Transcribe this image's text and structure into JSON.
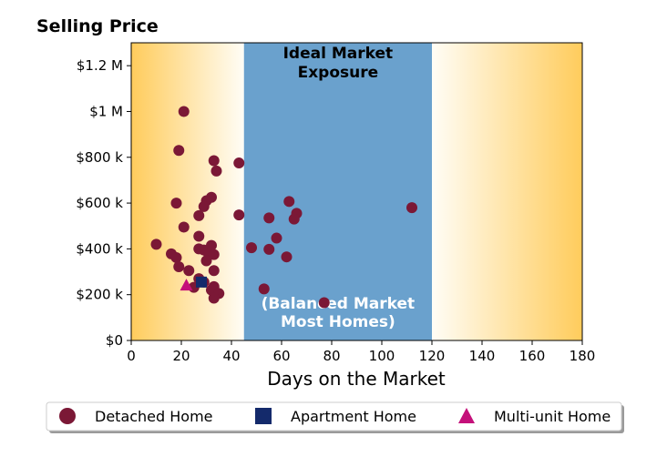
{
  "colors": {
    "detached": "#7b1836",
    "apartment": "#142a6b",
    "multi_unit": "#c4107a",
    "ideal_band": "#6aa1cd",
    "gradient_edge": "#ffcc5c",
    "gradient_center": "#fffdf6"
  },
  "chart_data": {
    "type": "scatter",
    "title": "Selling Price",
    "xlabel": "Days on the Market",
    "ylabel": "",
    "xlim": [
      0,
      180
    ],
    "ylim": [
      0,
      1300000
    ],
    "x_ticks": [
      0,
      20,
      40,
      60,
      80,
      100,
      120,
      140,
      160,
      180
    ],
    "x_tick_labels": [
      "0",
      "20",
      "40",
      "60",
      "80",
      "100",
      "120",
      "140",
      "160",
      "180"
    ],
    "y_ticks": [
      0,
      200000,
      400000,
      600000,
      800000,
      1000000,
      1200000
    ],
    "y_tick_labels": [
      "$0",
      "$200 k",
      "$400 k",
      "$600 k",
      "$800 k",
      "$1 M",
      "$1.2 M"
    ],
    "grid": false,
    "legend_position": "bottom, below axes",
    "annotations": [
      {
        "text_lines": [
          "Ideal Market",
          "Exposure"
        ],
        "color": "#000000",
        "position": "top-center of band"
      },
      {
        "text_lines": [
          "(Balanced Market",
          "Most Homes)"
        ],
        "color": "#ffffff",
        "position": "bottom-center of band"
      }
    ],
    "bands": [
      {
        "x_start": 45,
        "x_end": 120,
        "kind": "ideal"
      }
    ],
    "series": [
      {
        "name": "Detached Home",
        "marker": "circle",
        "points": [
          [
            21,
            1000000
          ],
          [
            19,
            830000
          ],
          [
            33,
            785000
          ],
          [
            43,
            775000
          ],
          [
            34,
            740000
          ],
          [
            32,
            625000
          ],
          [
            30,
            610000
          ],
          [
            18,
            600000
          ],
          [
            29,
            585000
          ],
          [
            27,
            545000
          ],
          [
            43,
            548000
          ],
          [
            21,
            495000
          ],
          [
            10,
            420000
          ],
          [
            16,
            378000
          ],
          [
            18,
            362000
          ],
          [
            19,
            322000
          ],
          [
            23,
            305000
          ],
          [
            27,
            455000
          ],
          [
            27,
            400000
          ],
          [
            29,
            395000
          ],
          [
            32,
            415000
          ],
          [
            31,
            375000
          ],
          [
            33,
            375000
          ],
          [
            30,
            348000
          ],
          [
            33,
            305000
          ],
          [
            27,
            270000
          ],
          [
            29,
            255000
          ],
          [
            25,
            232000
          ],
          [
            33,
            235000
          ],
          [
            32,
            220000
          ],
          [
            35,
            205000
          ],
          [
            33,
            185000
          ],
          [
            63,
            607000
          ],
          [
            66,
            555000
          ],
          [
            65,
            530000
          ],
          [
            55,
            535000
          ],
          [
            58,
            447000
          ],
          [
            48,
            405000
          ],
          [
            55,
            398000
          ],
          [
            62,
            365000
          ],
          [
            53,
            225000
          ],
          [
            77,
            165000
          ],
          [
            112,
            580000
          ]
        ]
      },
      {
        "name": "Apartment Home",
        "marker": "square",
        "points": [
          [
            28,
            255000
          ]
        ]
      },
      {
        "name": "Multi-unit Home",
        "marker": "triangle",
        "points": [
          [
            22,
            242000
          ]
        ]
      }
    ]
  }
}
